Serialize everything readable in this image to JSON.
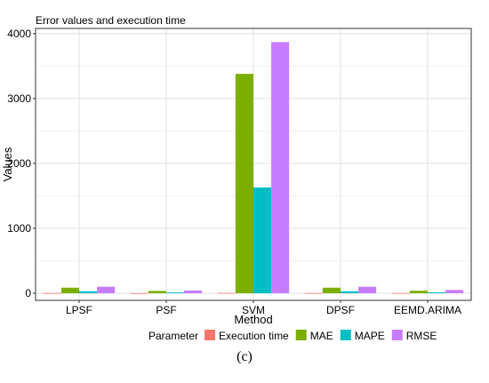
{
  "caption": "(c)",
  "chart_data": {
    "type": "bar",
    "title": "Error values and execution time",
    "xlabel": "Method",
    "ylabel": "Values",
    "categories": [
      "LPSF",
      "PSF",
      "SVM",
      "DPSF",
      "EEMD.ARIMA"
    ],
    "ylim": [
      -110,
      4080
    ],
    "yticks": [
      0,
      1000,
      2000,
      3000,
      4000
    ],
    "grid": true,
    "legend_title": "Parameter",
    "legend_position": "bottom",
    "series": [
      {
        "name": "Execution time",
        "color": "#F8766D",
        "values": [
          2,
          1,
          5,
          2,
          3
        ]
      },
      {
        "name": "MAE",
        "color": "#7CAE00",
        "values": [
          85,
          35,
          3380,
          85,
          38
        ]
      },
      {
        "name": "MAPE",
        "color": "#00BFC4",
        "values": [
          30,
          12,
          1630,
          30,
          14
        ]
      },
      {
        "name": "RMSE",
        "color": "#C77CFF",
        "values": [
          100,
          42,
          3870,
          100,
          50
        ]
      }
    ]
  }
}
